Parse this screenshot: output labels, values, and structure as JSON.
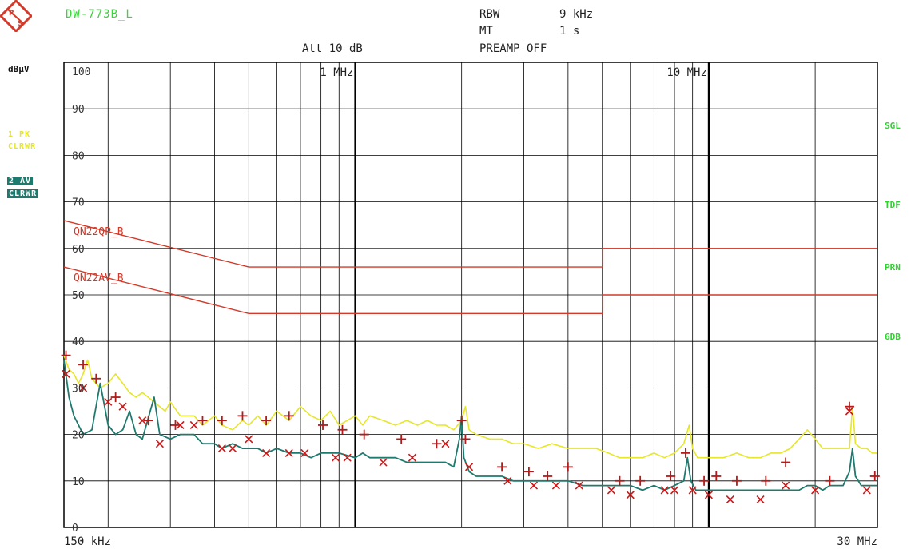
{
  "header": {
    "title": "DW-773B_L",
    "att": "Att 10 dB",
    "rbw_label": "RBW",
    "rbw_value": "9 kHz",
    "mt_label": "MT",
    "mt_value": "1 s",
    "preamp": "PREAMP OFF"
  },
  "left_panel": {
    "unit": "dBµV",
    "trace1_a": "1 PK",
    "trace1_b": "CLRWR",
    "trace2_a": "2 AV",
    "trace2_b": "CLRWR"
  },
  "right_panel": [
    "SGL",
    "TDF",
    "PRN",
    "6DB"
  ],
  "colors": {
    "pk_trace": "#e6e62a",
    "av_trace": "#1e7a6e",
    "limit": "#d33a2a",
    "qp_marker": "#b01c1c",
    "av_marker": "#cc1818",
    "grid": "#000000",
    "side_text": "#2fd22f",
    "title": "#3bd63b"
  },
  "icons": {
    "logo": "rohde-schwarz-logo"
  },
  "chart_data": {
    "type": "line",
    "x_scale": "log",
    "xlim": [
      0.15,
      30
    ],
    "ylim": [
      0,
      100
    ],
    "x_unit": "MHz",
    "y_ticks": [
      0,
      10,
      20,
      30,
      40,
      50,
      60,
      70,
      80,
      90,
      100
    ],
    "y_tick_labels": [
      "0",
      "10",
      "20",
      "30",
      "40",
      "50",
      "60",
      "70",
      "80",
      "90",
      "100"
    ],
    "x_tick_labels": [
      {
        "x": 0.15,
        "label": "150 kHz",
        "pos": "bottom"
      },
      {
        "x": 30,
        "label": "30 MHz",
        "pos": "bottom"
      },
      {
        "x": 1,
        "label": "1 MHz",
        "pos": "top"
      },
      {
        "x": 10,
        "label": "10 MHz",
        "pos": "top"
      }
    ],
    "limit_lines": [
      {
        "name": "QN22QP_B",
        "points": [
          [
            0.15,
            66
          ],
          [
            0.5,
            56
          ],
          [
            5,
            56
          ],
          [
            5,
            60
          ],
          [
            30,
            60
          ]
        ]
      },
      {
        "name": "QN22AV_B",
        "points": [
          [
            0.15,
            56
          ],
          [
            0.5,
            46
          ],
          [
            5,
            46
          ],
          [
            5,
            50
          ],
          [
            30,
            50
          ]
        ]
      }
    ],
    "series": [
      {
        "name": "1 PK",
        "points": [
          [
            0.15,
            37
          ],
          [
            0.155,
            34
          ],
          [
            0.16,
            33
          ],
          [
            0.165,
            31
          ],
          [
            0.17,
            33
          ],
          [
            0.175,
            36
          ],
          [
            0.18,
            32
          ],
          [
            0.19,
            30
          ],
          [
            0.2,
            31
          ],
          [
            0.21,
            33
          ],
          [
            0.22,
            31
          ],
          [
            0.23,
            29
          ],
          [
            0.24,
            28
          ],
          [
            0.25,
            29
          ],
          [
            0.27,
            27
          ],
          [
            0.29,
            25
          ],
          [
            0.3,
            27
          ],
          [
            0.32,
            24
          ],
          [
            0.35,
            24
          ],
          [
            0.37,
            22
          ],
          [
            0.4,
            24
          ],
          [
            0.42,
            22
          ],
          [
            0.45,
            21
          ],
          [
            0.48,
            23
          ],
          [
            0.5,
            22
          ],
          [
            0.53,
            24
          ],
          [
            0.56,
            22
          ],
          [
            0.6,
            25
          ],
          [
            0.65,
            23
          ],
          [
            0.7,
            26
          ],
          [
            0.75,
            24
          ],
          [
            0.8,
            23
          ],
          [
            0.85,
            25
          ],
          [
            0.9,
            22
          ],
          [
            0.95,
            23
          ],
          [
            1.0,
            24
          ],
          [
            1.05,
            22
          ],
          [
            1.1,
            24
          ],
          [
            1.2,
            23
          ],
          [
            1.3,
            22
          ],
          [
            1.4,
            23
          ],
          [
            1.5,
            22
          ],
          [
            1.6,
            23
          ],
          [
            1.7,
            22
          ],
          [
            1.8,
            22
          ],
          [
            1.9,
            21
          ],
          [
            2.0,
            23
          ],
          [
            2.05,
            26
          ],
          [
            2.1,
            21
          ],
          [
            2.2,
            20
          ],
          [
            2.4,
            19
          ],
          [
            2.6,
            19
          ],
          [
            2.8,
            18
          ],
          [
            3.0,
            18
          ],
          [
            3.3,
            17
          ],
          [
            3.6,
            18
          ],
          [
            4.0,
            17
          ],
          [
            4.4,
            17
          ],
          [
            4.8,
            17
          ],
          [
            5.2,
            16
          ],
          [
            5.6,
            15
          ],
          [
            6.0,
            15
          ],
          [
            6.5,
            15
          ],
          [
            7.0,
            16
          ],
          [
            7.5,
            15
          ],
          [
            8.0,
            16
          ],
          [
            8.5,
            18
          ],
          [
            8.8,
            22
          ],
          [
            9.0,
            17
          ],
          [
            9.3,
            15
          ],
          [
            10.0,
            15
          ],
          [
            11.0,
            15
          ],
          [
            12.0,
            16
          ],
          [
            13.0,
            15
          ],
          [
            14.0,
            15
          ],
          [
            15.0,
            16
          ],
          [
            16.0,
            16
          ],
          [
            17.0,
            17
          ],
          [
            18.0,
            19
          ],
          [
            19.0,
            21
          ],
          [
            20.0,
            19
          ],
          [
            21.0,
            17
          ],
          [
            22.0,
            17
          ],
          [
            24.0,
            17
          ],
          [
            25.0,
            17
          ],
          [
            25.5,
            26
          ],
          [
            26.0,
            18
          ],
          [
            27.0,
            17
          ],
          [
            28.0,
            17
          ],
          [
            29.0,
            16
          ],
          [
            30.0,
            16
          ]
        ]
      },
      {
        "name": "2 AV",
        "points": [
          [
            0.15,
            36
          ],
          [
            0.155,
            28
          ],
          [
            0.16,
            24
          ],
          [
            0.165,
            22
          ],
          [
            0.17,
            20
          ],
          [
            0.18,
            21
          ],
          [
            0.19,
            31
          ],
          [
            0.2,
            22
          ],
          [
            0.21,
            20
          ],
          [
            0.22,
            21
          ],
          [
            0.23,
            25
          ],
          [
            0.24,
            20
          ],
          [
            0.25,
            19
          ],
          [
            0.27,
            28
          ],
          [
            0.28,
            20
          ],
          [
            0.3,
            19
          ],
          [
            0.32,
            20
          ],
          [
            0.35,
            20
          ],
          [
            0.37,
            18
          ],
          [
            0.4,
            18
          ],
          [
            0.42,
            17
          ],
          [
            0.45,
            18
          ],
          [
            0.48,
            17
          ],
          [
            0.5,
            17
          ],
          [
            0.53,
            17
          ],
          [
            0.56,
            16
          ],
          [
            0.6,
            17
          ],
          [
            0.65,
            16
          ],
          [
            0.7,
            16
          ],
          [
            0.75,
            15
          ],
          [
            0.8,
            16
          ],
          [
            0.9,
            16
          ],
          [
            1.0,
            15
          ],
          [
            1.05,
            16
          ],
          [
            1.1,
            15
          ],
          [
            1.2,
            15
          ],
          [
            1.3,
            15
          ],
          [
            1.4,
            14
          ],
          [
            1.5,
            14
          ],
          [
            1.6,
            14
          ],
          [
            1.7,
            14
          ],
          [
            1.8,
            14
          ],
          [
            1.9,
            13
          ],
          [
            1.97,
            19
          ],
          [
            2.0,
            24
          ],
          [
            2.03,
            15
          ],
          [
            2.1,
            12
          ],
          [
            2.2,
            11
          ],
          [
            2.4,
            11
          ],
          [
            2.6,
            11
          ],
          [
            2.8,
            10
          ],
          [
            3.0,
            10
          ],
          [
            3.3,
            10
          ],
          [
            3.6,
            10
          ],
          [
            4.0,
            10
          ],
          [
            4.4,
            9
          ],
          [
            4.8,
            9
          ],
          [
            5.2,
            9
          ],
          [
            5.6,
            9
          ],
          [
            6.0,
            9
          ],
          [
            6.5,
            8
          ],
          [
            7.0,
            9
          ],
          [
            7.5,
            8
          ],
          [
            8.0,
            9
          ],
          [
            8.5,
            10
          ],
          [
            8.7,
            15
          ],
          [
            8.9,
            10
          ],
          [
            9.2,
            8
          ],
          [
            10.0,
            8
          ],
          [
            11.0,
            8
          ],
          [
            12.0,
            8
          ],
          [
            13.0,
            8
          ],
          [
            14.0,
            8
          ],
          [
            15.0,
            8
          ],
          [
            16.0,
            8
          ],
          [
            17.0,
            8
          ],
          [
            18.0,
            8
          ],
          [
            19.0,
            9
          ],
          [
            20.0,
            9
          ],
          [
            21.0,
            8
          ],
          [
            22.0,
            9
          ],
          [
            23.0,
            9
          ],
          [
            24.0,
            9
          ],
          [
            25.0,
            12
          ],
          [
            25.5,
            17
          ],
          [
            26.0,
            11
          ],
          [
            27.0,
            9
          ],
          [
            28.0,
            9
          ],
          [
            29.0,
            9
          ],
          [
            30.0,
            9
          ]
        ]
      }
    ],
    "qp_markers": [
      [
        0.152,
        37
      ],
      [
        0.17,
        35
      ],
      [
        0.185,
        32
      ],
      [
        0.21,
        28
      ],
      [
        0.26,
        23
      ],
      [
        0.31,
        22
      ],
      [
        0.37,
        23
      ],
      [
        0.42,
        23
      ],
      [
        0.48,
        24
      ],
      [
        0.56,
        23
      ],
      [
        0.65,
        24
      ],
      [
        0.81,
        22
      ],
      [
        0.92,
        21
      ],
      [
        1.06,
        20
      ],
      [
        1.35,
        19
      ],
      [
        1.7,
        18
      ],
      [
        2.0,
        23
      ],
      [
        2.05,
        19
      ],
      [
        2.6,
        13
      ],
      [
        3.1,
        12
      ],
      [
        3.5,
        11
      ],
      [
        4.0,
        13
      ],
      [
        5.6,
        10
      ],
      [
        6.4,
        10
      ],
      [
        7.8,
        11
      ],
      [
        8.6,
        16
      ],
      [
        9.7,
        10
      ],
      [
        10.5,
        11
      ],
      [
        12.0,
        10
      ],
      [
        14.5,
        10
      ],
      [
        16.5,
        14
      ],
      [
        22.0,
        10
      ],
      [
        25.0,
        26
      ],
      [
        29.5,
        11
      ]
    ],
    "av_markers": [
      [
        0.152,
        33
      ],
      [
        0.17,
        30
      ],
      [
        0.2,
        27
      ],
      [
        0.22,
        26
      ],
      [
        0.25,
        23
      ],
      [
        0.28,
        18
      ],
      [
        0.32,
        22
      ],
      [
        0.35,
        22
      ],
      [
        0.42,
        17
      ],
      [
        0.45,
        17
      ],
      [
        0.5,
        19
      ],
      [
        0.56,
        16
      ],
      [
        0.65,
        16
      ],
      [
        0.72,
        16
      ],
      [
        0.88,
        15
      ],
      [
        0.95,
        15
      ],
      [
        1.2,
        14
      ],
      [
        1.45,
        15
      ],
      [
        1.8,
        18
      ],
      [
        2.1,
        13
      ],
      [
        2.7,
        10
      ],
      [
        3.2,
        9
      ],
      [
        3.7,
        9
      ],
      [
        4.3,
        9
      ],
      [
        5.3,
        8
      ],
      [
        6.0,
        7
      ],
      [
        7.5,
        8
      ],
      [
        8.0,
        8
      ],
      [
        9.0,
        8
      ],
      [
        10.0,
        7
      ],
      [
        11.5,
        6
      ],
      [
        14.0,
        6
      ],
      [
        16.5,
        9
      ],
      [
        20.0,
        8
      ],
      [
        25.0,
        25
      ],
      [
        28.0,
        8
      ]
    ]
  }
}
